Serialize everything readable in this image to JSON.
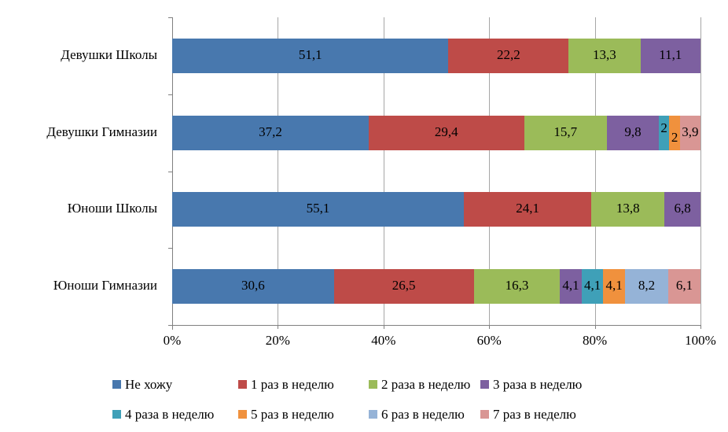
{
  "chart_data": {
    "type": "bar",
    "variant": "stacked-100",
    "orientation": "horizontal",
    "title": "",
    "categories": [
      "Девушки Школы",
      "Девушки Гимназии",
      "Юноши Школы",
      "Юноши Гимназии"
    ],
    "series": [
      {
        "name": "Не хожу",
        "color": "#4878AE",
        "values": [
          51.1,
          37.2,
          55.1,
          30.6
        ]
      },
      {
        "name": "1 раз в неделю",
        "color": "#BE4B48",
        "values": [
          22.2,
          29.4,
          24.1,
          26.5
        ]
      },
      {
        "name": "2 раза в неделю",
        "color": "#9BBB59",
        "values": [
          13.3,
          15.7,
          13.8,
          16.3
        ]
      },
      {
        "name": "3 раза в неделю",
        "color": "#7D60A0",
        "values": [
          11.1,
          9.8,
          6.8,
          4.1
        ]
      },
      {
        "name": "4 раза в неделю",
        "color": "#3FA0B8",
        "values": [
          0,
          2,
          0,
          4.1
        ]
      },
      {
        "name": "5 раз в неделю",
        "color": "#F0913D",
        "values": [
          0,
          2,
          0,
          4.1
        ]
      },
      {
        "name": "6 раз в неделю",
        "color": "#95B3D7",
        "values": [
          0,
          0,
          0,
          8.2
        ]
      },
      {
        "name": "7 раз в неделю",
        "color": "#D99694",
        "values": [
          0,
          3.9,
          0,
          6.1
        ]
      }
    ],
    "data_labels": {
      "decimal_separator": ",",
      "hide_zero": true
    },
    "x_axis": {
      "min": 0,
      "max": 100,
      "tick_step": 20,
      "tick_labels": [
        "0%",
        "20%",
        "40%",
        "60%",
        "80%",
        "100%"
      ]
    },
    "grid": true,
    "legend_position": "bottom",
    "colors": {
      "gridline": "#a6a6a6",
      "axis": "#808080",
      "text": "#000000",
      "background": "#ffffff"
    }
  }
}
